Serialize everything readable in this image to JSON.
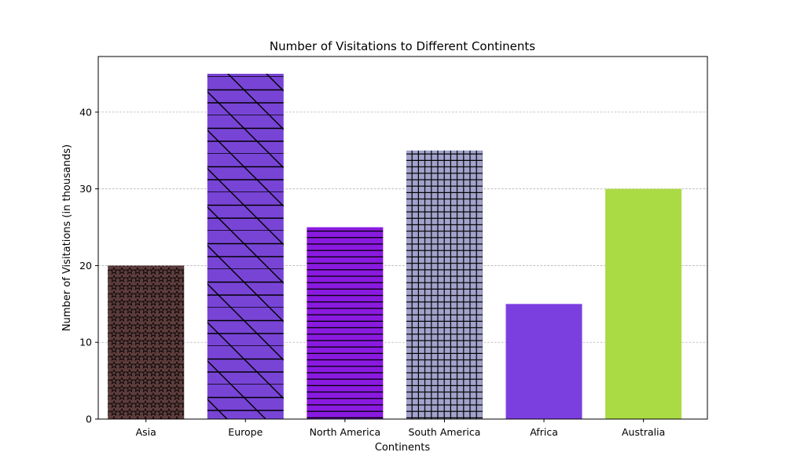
{
  "chart_data": {
    "type": "bar",
    "title": "Number of Visitations to Different Continents",
    "xlabel": "Continents",
    "ylabel": "Number of Visitations (in thousands)",
    "categories": [
      "Asia",
      "Europe",
      "North America",
      "South America",
      "Africa",
      "Australia"
    ],
    "values": [
      20,
      45,
      25,
      35,
      15,
      30
    ],
    "colors": [
      "#5e3c3c",
      "#7844d6",
      "#8a1ae0",
      "#a2a2cc",
      "#7b3fe0",
      "#aadb44"
    ],
    "hatches": [
      "stars",
      "diagonal-lines",
      "horizontal-lines",
      "grid",
      "none",
      "none"
    ],
    "ylim": [
      0,
      47.25
    ],
    "yticks": [
      0,
      10,
      20,
      30,
      40
    ],
    "grid": "y-dashed"
  }
}
